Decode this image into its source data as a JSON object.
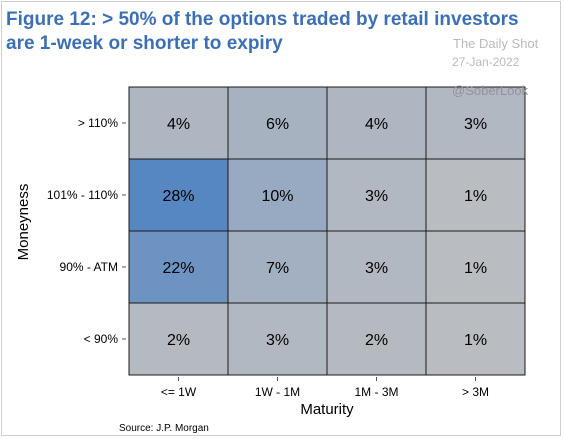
{
  "chart_data": {
    "type": "heatmap",
    "title": "Figure 12: > 50% of the options traded by retail investors are 1-week or shorter to expiry",
    "xlabel": "Maturity",
    "ylabel": "Moneyness",
    "x_categories": [
      "<= 1W",
      "1W - 1M",
      "1M - 3M",
      "> 3M"
    ],
    "y_categories": [
      "> 110%",
      "101% - 110%",
      "90% - ATM",
      "< 90%"
    ],
    "values": [
      [
        4,
        6,
        4,
        3
      ],
      [
        28,
        10,
        3,
        1
      ],
      [
        22,
        7,
        3,
        1
      ],
      [
        2,
        3,
        2,
        1
      ]
    ],
    "value_suffix": "%",
    "color_low": "#b9bcc1",
    "color_high": "#5787c3",
    "grid": true,
    "legend": "none"
  },
  "watermark": {
    "name": "The Daily Shot",
    "date": "27-Jan-2022",
    "handle": "@SoberLook"
  },
  "source": "Source: J.P. Morgan"
}
